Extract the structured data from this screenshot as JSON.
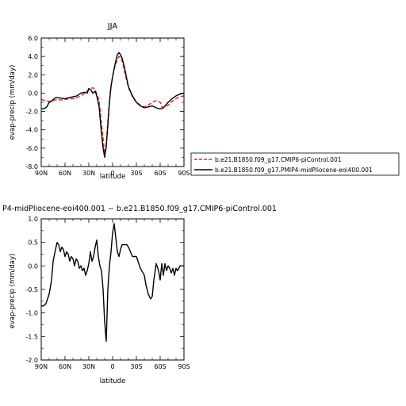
{
  "chart_data": [
    {
      "type": "line",
      "title": "JJA",
      "xlabel": "latitude",
      "ylabel": "evap-precip (mm/day)",
      "x_ticks": [
        "90N",
        "60N",
        "30N",
        "0",
        "30S",
        "60S",
        "90S"
      ],
      "x_tick_values": [
        90,
        60,
        30,
        0,
        -30,
        -60,
        -90
      ],
      "xlim": [
        90,
        -90
      ],
      "ylim": [
        -8,
        6
      ],
      "y_ticks": [
        "-8.0",
        "-6.0",
        "-4.0",
        "-2.0",
        "0.0",
        "2.0",
        "4.0",
        "6.0"
      ],
      "y_tick_values": [
        -8,
        -6,
        -4,
        -2,
        0,
        2,
        4,
        6
      ],
      "legend_position": "right",
      "series": [
        {
          "name": "b.e21.B1850.f09_g17.CMIP6-piControl.001",
          "color": "#e8221b",
          "dash": "dashed",
          "x": [
            90,
            85,
            80,
            75,
            70,
            65,
            60,
            55,
            50,
            45,
            40,
            35,
            30,
            27,
            25,
            22,
            20,
            17,
            15,
            12,
            10,
            8,
            6,
            4,
            2,
            0,
            -2,
            -4,
            -6,
            -8,
            -10,
            -12,
            -15,
            -18,
            -20,
            -25,
            -30,
            -35,
            -40,
            -45,
            -50,
            -55,
            -60,
            -62,
            -65,
            -70,
            -75,
            -80,
            -85,
            -90
          ],
          "y": [
            -0.7,
            -0.8,
            -0.9,
            -0.8,
            -0.7,
            -0.75,
            -0.7,
            -0.6,
            -0.6,
            -0.5,
            -0.3,
            0.0,
            0.4,
            0.5,
            0.6,
            0.4,
            -0.1,
            -0.8,
            -2.5,
            -5.0,
            -6.6,
            -5.5,
            -3.0,
            -0.8,
            0.8,
            1.8,
            2.6,
            3.2,
            3.7,
            4.0,
            3.9,
            3.5,
            2.4,
            1.3,
            0.6,
            -0.4,
            -1.0,
            -1.3,
            -1.5,
            -1.3,
            -1.0,
            -0.8,
            -1.0,
            -1.5,
            -1.6,
            -1.3,
            -0.9,
            -0.6,
            -0.4,
            -0.3
          ]
        },
        {
          "name": "b.e21.B1850.f09_g17.PMIP4-midPliocene-eoi400.001",
          "color": "#000000",
          "dash": "solid",
          "x": [
            90,
            86,
            83,
            80,
            77,
            75,
            72,
            68,
            65,
            60,
            55,
            50,
            45,
            40,
            35,
            32,
            30,
            27,
            25,
            22,
            20,
            17,
            15,
            12,
            10,
            8,
            6,
            4,
            2,
            0,
            -2,
            -4,
            -6,
            -8,
            -10,
            -12,
            -15,
            -18,
            -20,
            -25,
            -30,
            -35,
            -40,
            -45,
            -50,
            -55,
            -58,
            -60,
            -62,
            -65,
            -70,
            -75,
            -80,
            -85,
            -90
          ],
          "y": [
            -1.7,
            -1.7,
            -1.5,
            -1.0,
            -0.9,
            -0.7,
            -0.5,
            -0.5,
            -0.55,
            -0.6,
            -0.5,
            -0.4,
            -0.3,
            0.0,
            0.1,
            0.0,
            0.5,
            0.3,
            0.0,
            0.2,
            -0.3,
            -1.5,
            -3.5,
            -6.0,
            -7.0,
            -5.8,
            -3.5,
            -1.0,
            0.7,
            1.8,
            2.7,
            3.5,
            4.2,
            4.4,
            4.2,
            3.8,
            2.8,
            1.5,
            0.7,
            -0.3,
            -1.0,
            -1.4,
            -1.6,
            -1.5,
            -1.4,
            -1.6,
            -1.7,
            -1.7,
            -1.7,
            -1.5,
            -1.0,
            -0.6,
            -0.3,
            -0.1,
            0.0
          ]
        }
      ]
    },
    {
      "type": "line",
      "title": "P4-midPliocene-eoi400.001  −  b.e21.B1850.f09_g17.CMIP6-piControl.001",
      "xlabel": "latitude",
      "ylabel": "evap-precip (mm/day)",
      "x_ticks": [
        "90N",
        "60N",
        "30N",
        "0",
        "30S",
        "60S",
        "90S"
      ],
      "x_tick_values": [
        90,
        60,
        30,
        0,
        -30,
        -60,
        -90
      ],
      "xlim": [
        90,
        -90
      ],
      "ylim": [
        -2,
        1
      ],
      "y_ticks": [
        "-2.0",
        "-1.5",
        "-1.0",
        "-0.5",
        "0.0",
        "0.5",
        "1.0"
      ],
      "y_tick_values": [
        -2,
        -1.5,
        -1,
        -0.5,
        0,
        0.5,
        1
      ],
      "series": [
        {
          "color": "#000000",
          "x": [
            90,
            87,
            84,
            80,
            77,
            75,
            72,
            70,
            68,
            66,
            64,
            62,
            60,
            58,
            56,
            54,
            52,
            50,
            48,
            46,
            44,
            42,
            40,
            38,
            36,
            34,
            32,
            30,
            28,
            26,
            24,
            22,
            20,
            18,
            16,
            14,
            12,
            10,
            8,
            6,
            4,
            2,
            0,
            -2,
            -4,
            -6,
            -8,
            -10,
            -12,
            -15,
            -18,
            -20,
            -25,
            -30,
            -35,
            -40,
            -42,
            -45,
            -48,
            -50,
            -52,
            -55,
            -58,
            -60,
            -62,
            -64,
            -66,
            -68,
            -70,
            -72,
            -74,
            -76,
            -78,
            -80,
            -82,
            -85,
            -88,
            -90
          ],
          "y": [
            -0.85,
            -0.85,
            -0.8,
            -0.6,
            -0.3,
            0.1,
            0.35,
            0.5,
            0.45,
            0.3,
            0.4,
            0.35,
            0.2,
            0.3,
            0.25,
            0.1,
            0.2,
            0.15,
            0.0,
            0.15,
            0.1,
            -0.05,
            0.0,
            -0.1,
            -0.05,
            -0.2,
            -0.1,
            0.05,
            0.3,
            0.1,
            0.2,
            0.4,
            0.55,
            0.2,
            0.0,
            -0.1,
            -0.5,
            -1.2,
            -1.6,
            -0.5,
            0.0,
            0.3,
            0.7,
            0.9,
            0.6,
            0.3,
            0.2,
            0.35,
            0.45,
            0.45,
            0.45,
            0.4,
            0.2,
            0.2,
            -0.05,
            -0.2,
            -0.4,
            -0.6,
            -0.7,
            -0.65,
            -0.3,
            0.05,
            -0.1,
            -0.3,
            0.05,
            -0.2,
            0.05,
            -0.1,
            0.0,
            -0.05,
            -0.15,
            -0.05,
            -0.2,
            -0.05,
            -0.1,
            0.0,
            0.0,
            0.0
          ]
        }
      ]
    }
  ]
}
